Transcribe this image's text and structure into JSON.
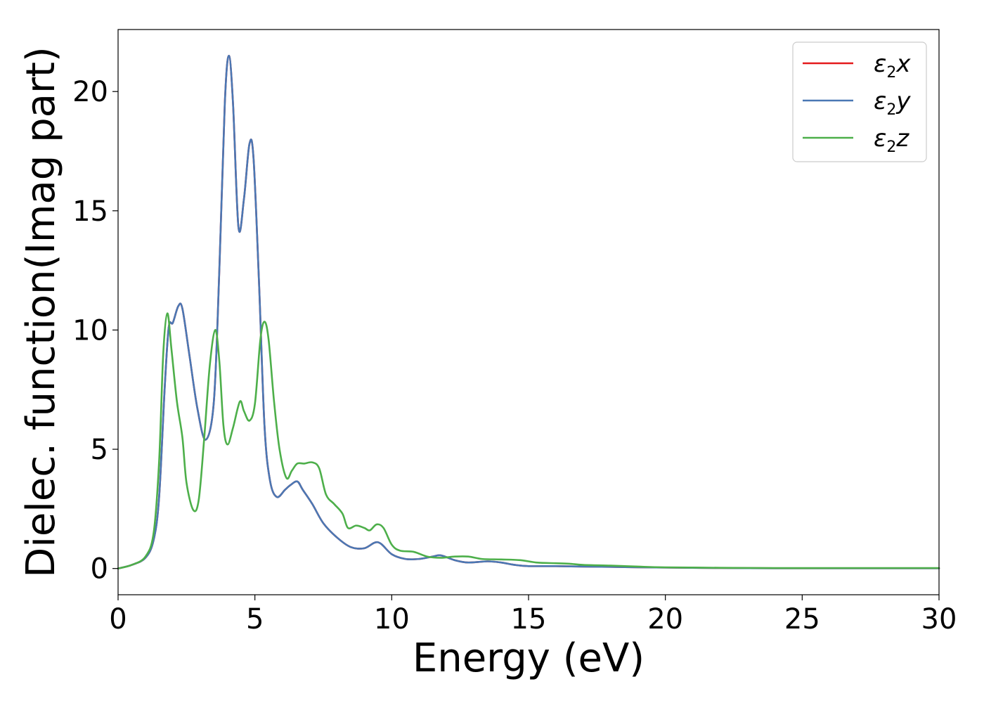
{
  "chart_data": {
    "type": "line",
    "xlabel": "Energy (eV)",
    "ylabel": "Dielec. function(Imag part)",
    "xlim": [
      0,
      30
    ],
    "ylim": [
      -1.1,
      22.6
    ],
    "xticks": [
      0,
      5,
      10,
      15,
      20,
      25,
      30
    ],
    "yticks": [
      0,
      5,
      10,
      15,
      20
    ],
    "grid": false,
    "legend_position": "top-right",
    "series": [
      {
        "name": "ε₂x",
        "legend_main": "ε",
        "legend_sub": "2",
        "legend_tail": "x",
        "color": "#e41a1c",
        "points": [
          [
            0,
            0
          ],
          [
            0.5,
            0.15
          ],
          [
            1.0,
            0.45
          ],
          [
            1.3,
            1.2
          ],
          [
            1.5,
            3.0
          ],
          [
            1.7,
            7.5
          ],
          [
            1.85,
            10.1
          ],
          [
            2.0,
            10.3
          ],
          [
            2.2,
            11.0
          ],
          [
            2.35,
            10.9
          ],
          [
            2.6,
            9.0
          ],
          [
            2.9,
            6.7
          ],
          [
            3.2,
            5.4
          ],
          [
            3.5,
            7.0
          ],
          [
            3.7,
            12.5
          ],
          [
            3.9,
            19.5
          ],
          [
            4.05,
            21.5
          ],
          [
            4.2,
            19.5
          ],
          [
            4.4,
            14.3
          ],
          [
            4.6,
            15.5
          ],
          [
            4.8,
            17.8
          ],
          [
            4.95,
            17.2
          ],
          [
            5.15,
            12.0
          ],
          [
            5.35,
            6.0
          ],
          [
            5.55,
            3.7
          ],
          [
            5.8,
            3.0
          ],
          [
            6.1,
            3.3
          ],
          [
            6.3,
            3.5
          ],
          [
            6.55,
            3.65
          ],
          [
            6.75,
            3.3
          ],
          [
            7.1,
            2.7
          ],
          [
            7.5,
            1.9
          ],
          [
            8.0,
            1.3
          ],
          [
            8.5,
            0.9
          ],
          [
            9.0,
            0.85
          ],
          [
            9.5,
            1.1
          ],
          [
            10.0,
            0.6
          ],
          [
            10.5,
            0.4
          ],
          [
            11.0,
            0.4
          ],
          [
            11.5,
            0.5
          ],
          [
            11.8,
            0.55
          ],
          [
            12.3,
            0.35
          ],
          [
            12.8,
            0.25
          ],
          [
            13.5,
            0.3
          ],
          [
            14.0,
            0.25
          ],
          [
            14.5,
            0.15
          ],
          [
            15.0,
            0.1
          ],
          [
            16.0,
            0.1
          ],
          [
            17.0,
            0.08
          ],
          [
            18.0,
            0.07
          ],
          [
            19.0,
            0.05
          ],
          [
            20.0,
            0.04
          ],
          [
            22.0,
            0.02
          ],
          [
            24.0,
            0.01
          ],
          [
            26.0,
            0.01
          ],
          [
            28.0,
            0.01
          ],
          [
            30.0,
            0.01
          ]
        ]
      },
      {
        "name": "ε₂y",
        "legend_main": "ε",
        "legend_sub": "2",
        "legend_tail": "y",
        "color": "#4a78b4",
        "points": [
          [
            0,
            0
          ],
          [
            0.5,
            0.15
          ],
          [
            1.0,
            0.45
          ],
          [
            1.3,
            1.2
          ],
          [
            1.5,
            3.0
          ],
          [
            1.7,
            7.5
          ],
          [
            1.85,
            10.1
          ],
          [
            2.0,
            10.3
          ],
          [
            2.2,
            11.0
          ],
          [
            2.35,
            10.9
          ],
          [
            2.6,
            9.0
          ],
          [
            2.9,
            6.7
          ],
          [
            3.2,
            5.4
          ],
          [
            3.5,
            7.0
          ],
          [
            3.7,
            12.5
          ],
          [
            3.9,
            19.5
          ],
          [
            4.05,
            21.5
          ],
          [
            4.2,
            19.5
          ],
          [
            4.4,
            14.3
          ],
          [
            4.6,
            15.5
          ],
          [
            4.8,
            17.8
          ],
          [
            4.95,
            17.2
          ],
          [
            5.15,
            12.0
          ],
          [
            5.35,
            6.0
          ],
          [
            5.55,
            3.7
          ],
          [
            5.8,
            3.0
          ],
          [
            6.1,
            3.3
          ],
          [
            6.3,
            3.5
          ],
          [
            6.55,
            3.65
          ],
          [
            6.75,
            3.3
          ],
          [
            7.1,
            2.7
          ],
          [
            7.5,
            1.9
          ],
          [
            8.0,
            1.3
          ],
          [
            8.5,
            0.9
          ],
          [
            9.0,
            0.85
          ],
          [
            9.5,
            1.1
          ],
          [
            10.0,
            0.6
          ],
          [
            10.5,
            0.4
          ],
          [
            11.0,
            0.4
          ],
          [
            11.5,
            0.5
          ],
          [
            11.8,
            0.55
          ],
          [
            12.3,
            0.35
          ],
          [
            12.8,
            0.25
          ],
          [
            13.5,
            0.3
          ],
          [
            14.0,
            0.25
          ],
          [
            14.5,
            0.15
          ],
          [
            15.0,
            0.1
          ],
          [
            16.0,
            0.1
          ],
          [
            17.0,
            0.08
          ],
          [
            18.0,
            0.07
          ],
          [
            19.0,
            0.05
          ],
          [
            20.0,
            0.04
          ],
          [
            22.0,
            0.02
          ],
          [
            24.0,
            0.01
          ],
          [
            26.0,
            0.01
          ],
          [
            28.0,
            0.01
          ],
          [
            30.0,
            0.01
          ]
        ]
      },
      {
        "name": "ε₂z",
        "legend_main": "ε",
        "legend_sub": "2",
        "legend_tail": "z",
        "color": "#4daf4a",
        "points": [
          [
            0,
            0
          ],
          [
            0.5,
            0.15
          ],
          [
            1.0,
            0.5
          ],
          [
            1.3,
            1.5
          ],
          [
            1.5,
            4.5
          ],
          [
            1.65,
            9.0
          ],
          [
            1.8,
            10.7
          ],
          [
            1.95,
            9.2
          ],
          [
            2.15,
            7.0
          ],
          [
            2.35,
            5.5
          ],
          [
            2.5,
            3.6
          ],
          [
            2.75,
            2.45
          ],
          [
            2.95,
            2.9
          ],
          [
            3.15,
            5.5
          ],
          [
            3.35,
            8.5
          ],
          [
            3.55,
            10.0
          ],
          [
            3.7,
            8.7
          ],
          [
            3.85,
            6.0
          ],
          [
            4.0,
            5.2
          ],
          [
            4.2,
            5.9
          ],
          [
            4.45,
            7.0
          ],
          [
            4.6,
            6.6
          ],
          [
            4.8,
            6.2
          ],
          [
            5.0,
            6.9
          ],
          [
            5.2,
            9.6
          ],
          [
            5.35,
            10.35
          ],
          [
            5.5,
            9.6
          ],
          [
            5.7,
            7.0
          ],
          [
            5.9,
            5.0
          ],
          [
            6.15,
            3.8
          ],
          [
            6.35,
            4.1
          ],
          [
            6.55,
            4.4
          ],
          [
            6.8,
            4.4
          ],
          [
            7.1,
            4.45
          ],
          [
            7.35,
            4.2
          ],
          [
            7.6,
            3.1
          ],
          [
            7.9,
            2.7
          ],
          [
            8.2,
            2.3
          ],
          [
            8.4,
            1.7
          ],
          [
            8.7,
            1.8
          ],
          [
            9.0,
            1.7
          ],
          [
            9.2,
            1.6
          ],
          [
            9.45,
            1.85
          ],
          [
            9.7,
            1.7
          ],
          [
            10.0,
            1.0
          ],
          [
            10.3,
            0.75
          ],
          [
            10.8,
            0.7
          ],
          [
            11.3,
            0.5
          ],
          [
            11.8,
            0.45
          ],
          [
            12.3,
            0.5
          ],
          [
            12.8,
            0.5
          ],
          [
            13.3,
            0.4
          ],
          [
            14.0,
            0.38
          ],
          [
            14.7,
            0.35
          ],
          [
            15.3,
            0.25
          ],
          [
            16.0,
            0.22
          ],
          [
            16.5,
            0.2
          ],
          [
            17.0,
            0.15
          ],
          [
            18.0,
            0.12
          ],
          [
            19.0,
            0.08
          ],
          [
            20.0,
            0.05
          ],
          [
            22.0,
            0.03
          ],
          [
            24.0,
            0.02
          ],
          [
            26.0,
            0.02
          ],
          [
            28.0,
            0.02
          ],
          [
            30.0,
            0.02
          ]
        ]
      }
    ]
  }
}
